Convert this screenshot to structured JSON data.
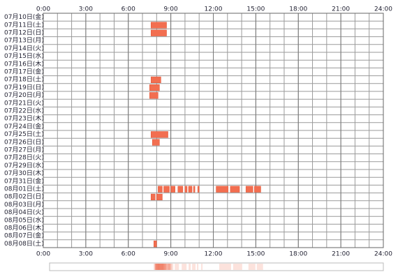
{
  "chart_data": {
    "type": "timeline",
    "categories": [
      "07月10日(金)",
      "07月11日(土)",
      "07月12日(日)",
      "07月13日(月)",
      "07月14日(火)",
      "07月15日(水)",
      "07月16日(木)",
      "07月17日(金)",
      "07月18日(土)",
      "07月19日(日)",
      "07月20日(月)",
      "07月21日(火)",
      "07月22日(水)",
      "07月23日(木)",
      "07月24日(金)",
      "07月25日(土)",
      "07月26日(日)",
      "07月27日(月)",
      "07月28日(火)",
      "07月29日(水)",
      "07月30日(木)",
      "07月31日(金)",
      "08月01日(土)",
      "08月02日(日)",
      "08月03日(月)",
      "08月04日(火)",
      "08月05日(水)",
      "08月06日(木)",
      "08月07日(金)",
      "08月08日(土)"
    ],
    "values": [
      [],
      [
        [
          7.6,
          8.7
        ]
      ],
      [
        [
          7.6,
          8.7
        ]
      ],
      [],
      [],
      [],
      [],
      [],
      [
        [
          7.6,
          8.3
        ]
      ],
      [
        [
          7.5,
          8.2
        ]
      ],
      [
        [
          7.5,
          8.1
        ]
      ],
      [],
      [],
      [],
      [],
      [
        [
          7.6,
          8.8
        ]
      ],
      [
        [
          7.7,
          8.2
        ]
      ],
      [],
      [],
      [],
      [],
      [],
      [
        [
          8.1,
          8.4
        ],
        [
          8.5,
          8.9
        ],
        [
          9.0,
          9.3
        ],
        [
          9.5,
          9.85
        ],
        [
          10.0,
          10.15
        ],
        [
          10.25,
          10.5
        ],
        [
          10.6,
          10.7
        ],
        [
          10.9,
          11.0
        ],
        [
          12.2,
          13.05
        ],
        [
          13.2,
          13.85
        ],
        [
          14.3,
          14.8
        ],
        [
          14.9,
          15.35
        ]
      ],
      [
        [
          7.6,
          7.9
        ],
        [
          8.0,
          8.4
        ]
      ],
      [],
      [],
      [],
      [],
      [],
      [
        [
          7.8,
          8.0
        ]
      ]
    ],
    "color": "#f26e50",
    "xlim": [
      0,
      24
    ],
    "xticks": [
      {
        "value": 0,
        "label": "0:00"
      },
      {
        "value": 3,
        "label": "3:00"
      },
      {
        "value": 6,
        "label": "6:00"
      },
      {
        "value": 9,
        "label": "9:00"
      },
      {
        "value": 12,
        "label": "12:00"
      },
      {
        "value": 15,
        "label": "15:00"
      },
      {
        "value": 18,
        "label": "18:00"
      },
      {
        "value": 21,
        "label": "21:00"
      },
      {
        "value": 24,
        "label": "24:00"
      }
    ],
    "grid": true
  }
}
